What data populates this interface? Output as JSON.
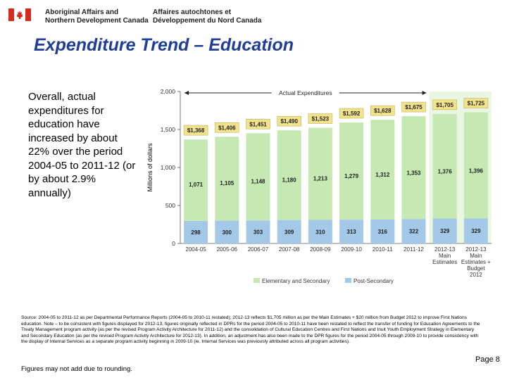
{
  "header": {
    "dept_en_line1": "Aboriginal Affairs and",
    "dept_en_line2": "Northern Development Canada",
    "dept_fr_line1": "Affaires autochtones et",
    "dept_fr_line2": "Développement du Nord Canada"
  },
  "title": "Expenditure Trend – Education",
  "bullet": "Overall, actual expenditures for education have increased by about 22% over the period 2004-05 to 2011-12 (or by about 2.9% annually)",
  "source_note": "Source: 2004-05 to 2011-12 as per Departmental Performance Reports (2004-05 to 2010-11 restated); 2012-13 reflects $1,705 million as per the Main Estimates + $20 million from Budget 2012 to improve First Nations education. Note – to be consistent with figures displayed for 2012-13, figures originally reflected in DPRs for the period 2004-05 to 2010-11 have been restated to reflect the transfer of funding for Education Agreements to the Treaty Management program activity (as per the revised Program Activity Architecture for 2011-12) and the consolidation of Cultural Education Centres and First Nations and Inuit Youth Employment Strategy in Elementary and Secondary Education (as per the revised Program Activity Architecture for 2012-13). In addition, an adjustment has also been made to the DPR figures for the period 2004-05 through 2009-10 to provide consistency with the display of Internal Services as a separate program activity beginning in 2009-10 (ie. Internal Services was previously attributed across all program activities).",
  "rounding_note": "Figures may not add due to rounding.",
  "page_number": "Page 8",
  "colors": {
    "flag_red": "#d52b1e",
    "title_blue": "#1f3d99",
    "elementary": "#c6e9b4",
    "post_secondary": "#a4c8e8",
    "total_label_bg": "#f2e28c"
  },
  "chart_data": {
    "type": "bar",
    "stacked": true,
    "categories": [
      "2004-05",
      "2005-06",
      "2006-07",
      "2007-08",
      "2008-09",
      "2009-10",
      "2010-11",
      "2011-12",
      "2012-13 Main Estimates",
      "2012-13 Main Estimates + Budget 2012"
    ],
    "category_lines": [
      [
        "2004-05"
      ],
      [
        "2005-06"
      ],
      [
        "2006-07"
      ],
      [
        "2007-08"
      ],
      [
        "2008-09"
      ],
      [
        "2009-10"
      ],
      [
        "2010-11"
      ],
      [
        "2011-12"
      ],
      [
        "2012-13",
        "Main",
        "Estimates"
      ],
      [
        "2012-13",
        "Main",
        "Estimates +",
        "Budget",
        "2012"
      ]
    ],
    "series": [
      {
        "name": "Post-Secondary",
        "values": [
          298,
          300,
          303,
          309,
          310,
          313,
          316,
          322,
          329,
          329
        ],
        "labels": [
          "298",
          "300",
          "303",
          "309",
          "310",
          "313",
          "316",
          "322",
          "329",
          "329"
        ]
      },
      {
        "name": "Elementary and Secondary",
        "values": [
          1071,
          1105,
          1148,
          1180,
          1213,
          1279,
          1312,
          1353,
          1376,
          1396
        ],
        "labels": [
          "1,071",
          "1,105",
          "1,148",
          "1,180",
          "1,213",
          "1,279",
          "1,312",
          "1,353",
          "1,376",
          "1,396"
        ]
      }
    ],
    "totals": [
      1368,
      1406,
      1451,
      1490,
      1523,
      1592,
      1628,
      1675,
      1705,
      1725
    ],
    "total_labels": [
      "$1,368",
      "$1,406",
      "$1,451",
      "$1,490",
      "$1,523",
      "$1,592",
      "$1,628",
      "$1,675",
      "$1,705",
      "$1,725"
    ],
    "ylabel": "Millions of dollars",
    "ylim": [
      0,
      2000
    ],
    "yticks": [
      0,
      500,
      1000,
      1500,
      2000
    ],
    "ytick_labels": [
      "0",
      "500",
      "1,000",
      "1,500",
      "2,000"
    ],
    "annotation": "Actual Expenditures",
    "legend": [
      "Elementary and Secondary",
      "Post-Secondary"
    ],
    "legend_position": "bottom"
  }
}
